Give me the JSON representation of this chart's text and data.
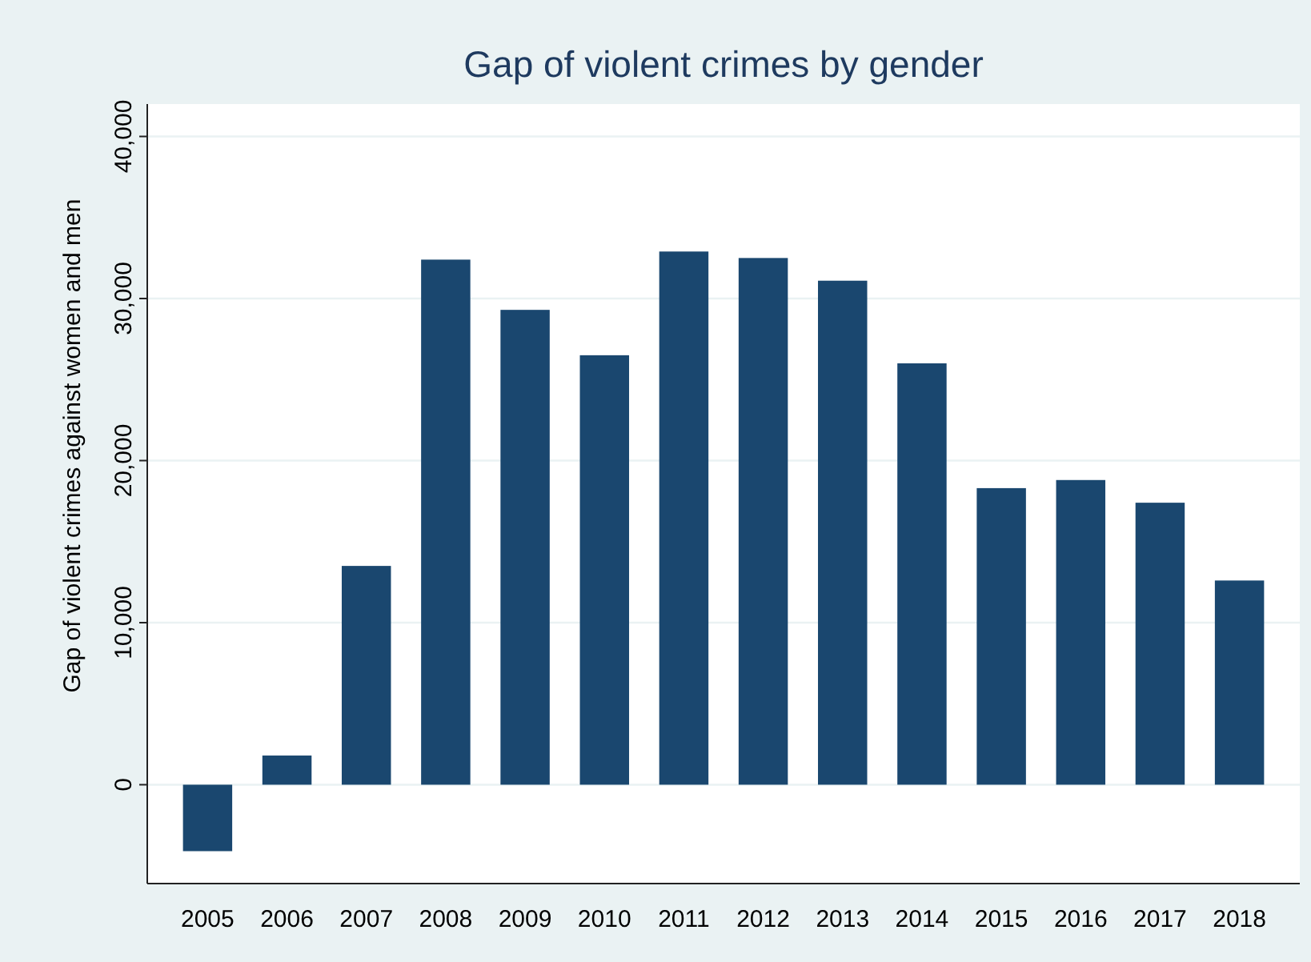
{
  "chart_data": {
    "type": "bar",
    "title": "Gap of violent crimes by gender",
    "ylabel": "Gap of violent crimes against women and men",
    "categories": [
      "2005",
      "2006",
      "2007",
      "2008",
      "2009",
      "2010",
      "2011",
      "2012",
      "2013",
      "2014",
      "2015",
      "2016",
      "2017",
      "2018"
    ],
    "values": [
      -4100,
      1800,
      13500,
      32400,
      29300,
      26500,
      32900,
      32500,
      31100,
      26000,
      18300,
      18800,
      17400,
      12600
    ],
    "color": "#1a476f",
    "ylim": [
      -6100,
      42000
    ],
    "yticks": [
      {
        "value": 0,
        "label": "0"
      },
      {
        "value": 10000,
        "label": "10,000"
      },
      {
        "value": 20000,
        "label": "20,000"
      },
      {
        "value": 30000,
        "label": "30,000"
      },
      {
        "value": 40000,
        "label": "40,000"
      }
    ],
    "grid": "y"
  }
}
